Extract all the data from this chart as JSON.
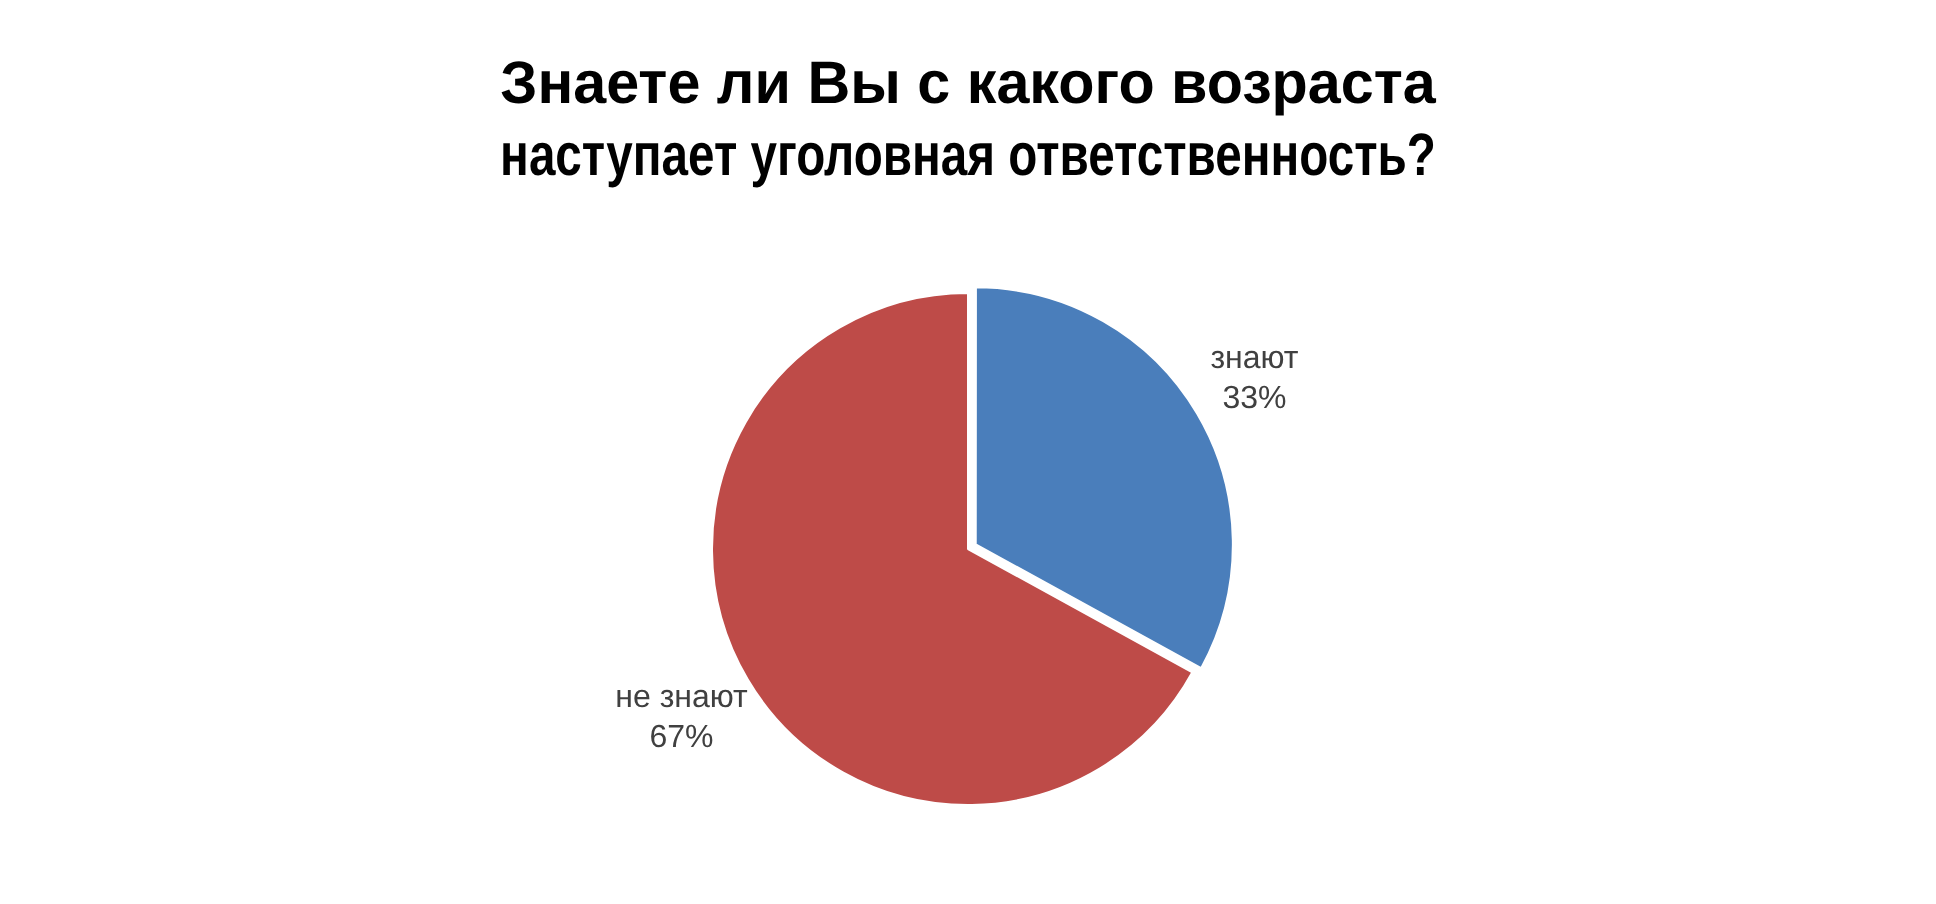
{
  "chart_data": {
    "type": "pie",
    "title": "Знаете ли Вы с какого возраста наступает уголовная ответственность?",
    "categories": [
      "знают",
      "не знают"
    ],
    "values": [
      33,
      67
    ],
    "value_labels": [
      "33%",
      "67%"
    ],
    "colors": [
      "#4a7ebb",
      "#be4b48"
    ],
    "legend": false
  }
}
